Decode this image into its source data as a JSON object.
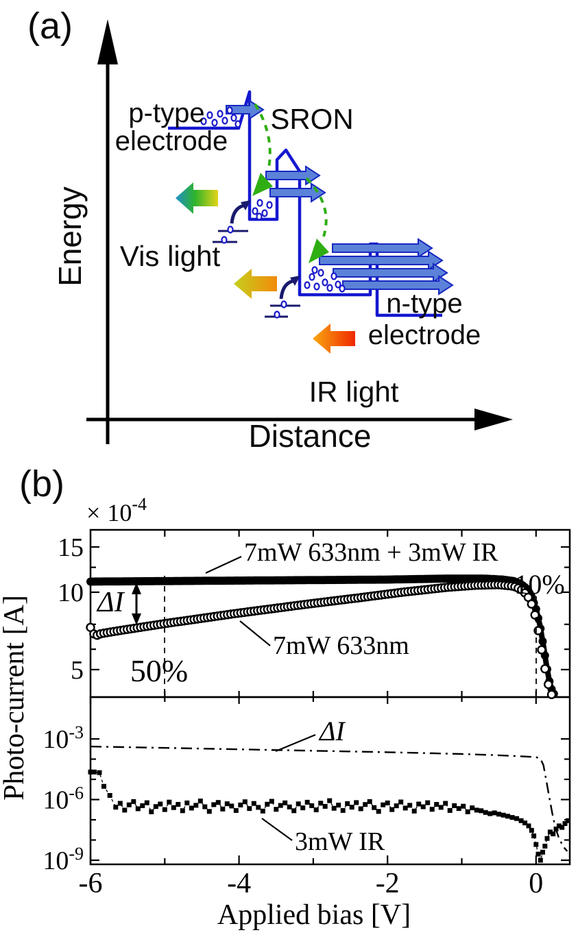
{
  "figure": {
    "panel_a": {
      "tag": "(a)",
      "p_electrode_line1": "p-type",
      "p_electrode_line2": "electrode",
      "sron": "SRON",
      "n_electrode_line1": "n-type",
      "n_electrode_line2": "electrode",
      "vis_light": "Vis light",
      "ir_light": "IR light",
      "energy_axis": "Energy",
      "distance_axis": "Distance",
      "colors": {
        "band_blue": "#1518cf",
        "vis_text_blue": "#2222dd",
        "ir_text_red": "#ff1405",
        "green_arrow": "#2fae13",
        "navy": "#1a1a6e",
        "fat_arrow_fill": "#5b82d8"
      }
    },
    "panel_b": {
      "tag": "(b)"
    }
  },
  "chart_data": [
    {
      "type": "scatter",
      "panel": "top",
      "x_range": [
        -6,
        0.46
      ],
      "y_scale": "log",
      "y_unit": "1e-4 A",
      "grid": false,
      "ylabel": "Photo-current [A]",
      "y_multiplier": {
        "sign": "×",
        "base": "10",
        "exp": "-4"
      },
      "y_ticks": [
        {
          "v": 15,
          "label": "15"
        },
        {
          "v": 10,
          "label": "10"
        },
        {
          "v": 5,
          "label": "5"
        }
      ],
      "y_minor": [
        12.5,
        7.5,
        6
      ],
      "x_minor_ticks": [
        -5,
        -4,
        -3,
        -2,
        -1,
        0
      ],
      "annotations": {
        "delta_label": "ΔI",
        "pct50": "50%",
        "pct10": "10%",
        "pct50_x": -5,
        "pct10_x": 0
      },
      "series": [
        {
          "name": "7mW 633nm + 3mW IR",
          "marker": "filled-circle",
          "marker_step": 0.03,
          "anchors": [
            [
              -6,
              11.0
            ],
            [
              -5,
              11.05
            ],
            [
              -4,
              11.1
            ],
            [
              -3,
              11.15
            ],
            [
              -2,
              11.2
            ],
            [
              -1.2,
              11.3
            ],
            [
              -0.7,
              11.3
            ],
            [
              -0.45,
              11.2
            ],
            [
              -0.3,
              11.05
            ],
            [
              -0.2,
              10.75
            ],
            [
              -0.12,
              10.3
            ],
            [
              -0.06,
              9.6
            ],
            [
              0,
              8.6
            ],
            [
              0.05,
              7.5
            ],
            [
              0.1,
              6.2
            ],
            [
              0.14,
              5.2
            ],
            [
              0.18,
              4.5
            ],
            [
              0.22,
              4.1
            ],
            [
              0.26,
              3.95
            ]
          ]
        },
        {
          "name": "7mW 633nm",
          "marker": "open-circle",
          "marker_step": 0.045,
          "anchors": [
            [
              -6,
              7.3
            ],
            [
              -5.94,
              6.75
            ],
            [
              -5.86,
              6.9
            ],
            [
              -5.6,
              7.1
            ],
            [
              -5,
              7.55
            ],
            [
              -4,
              8.3
            ],
            [
              -3,
              9.05
            ],
            [
              -2.4,
              9.5
            ],
            [
              -1.8,
              10.0
            ],
            [
              -1.2,
              10.45
            ],
            [
              -0.8,
              10.65
            ],
            [
              -0.5,
              10.7
            ],
            [
              -0.3,
              10.55
            ],
            [
              -0.2,
              10.25
            ],
            [
              -0.12,
              9.75
            ],
            [
              -0.06,
              9.0
            ],
            [
              0,
              7.9
            ],
            [
              0.05,
              6.6
            ],
            [
              0.1,
              5.4
            ],
            [
              0.14,
              4.7
            ],
            [
              0.18,
              4.2
            ],
            [
              0.21,
              4.0
            ]
          ]
        }
      ]
    },
    {
      "type": "scatter",
      "panel": "bottom",
      "x_range": [
        -6,
        0.46
      ],
      "y_scale": "log",
      "grid": false,
      "xlabel": "Applied bias [V]",
      "x_ticks": [
        {
          "v": -6,
          "label": "-6"
        },
        {
          "v": -4,
          "label": "-4"
        },
        {
          "v": -2,
          "label": "-2"
        },
        {
          "v": 0,
          "label": "0"
        }
      ],
      "x_minor": [
        -5,
        -3,
        -1
      ],
      "y_ticks": [
        {
          "v": 0.001,
          "base": "10",
          "exp": "-3"
        },
        {
          "v": 1e-06,
          "base": "10",
          "exp": "-6"
        },
        {
          "v": 1e-09,
          "base": "10",
          "exp": "-9"
        }
      ],
      "y_minor": [
        0.0001,
        1e-05,
        1e-07,
        1e-08
      ],
      "series": [
        {
          "name": "ΔI",
          "style": "dash-dot-line",
          "anchors": [
            [
              -6,
              0.00042
            ],
            [
              -5,
              0.00036
            ],
            [
              -4,
              0.000305
            ],
            [
              -3,
              0.00026
            ],
            [
              -2,
              0.00022
            ],
            [
              -1,
              0.00018
            ],
            [
              -0.5,
              0.000155
            ],
            [
              -0.2,
              0.000138
            ],
            [
              0,
              0.000125
            ],
            [
              0.06,
              0.000105
            ],
            [
              0.1,
              5e-05
            ],
            [
              0.14,
              8e-06
            ],
            [
              0.18,
              1.2e-06
            ],
            [
              0.22,
              2e-07
            ],
            [
              0.26,
              4e-08
            ],
            [
              0.31,
              1.2e-08
            ],
            [
              0.37,
              4.5e-09
            ],
            [
              0.42,
              2.8e-09
            ]
          ]
        },
        {
          "name": "3mW IR",
          "marker": "filled-square",
          "points_head": [
            [
              -6,
              2.3e-05
            ],
            [
              -5.95,
              2.3e-05
            ],
            [
              -5.88,
              2.15e-05
            ],
            [
              -5.82,
              4.5e-06
            ],
            [
              -5.74,
              1.6e-06
            ]
          ],
          "noise": {
            "x_start": -5.66,
            "x_step": 0.06,
            "scale": 1e-07,
            "values": [
              4.2,
              6.5,
              3.0,
              5.5,
              8.0,
              3.5,
              5.0,
              7.0,
              2.5,
              4.5,
              6.0,
              3.2,
              7.5,
              4.0,
              5.8,
              2.8,
              6.8,
              3.8,
              5.2,
              8.5,
              4.4,
              2.6,
              5.6,
              7.2,
              3.4,
              6.2,
              4.8,
              2.9,
              5.4,
              7.8,
              3.6,
              6.4,
              4.1,
              2.7,
              5.9,
              8.2,
              3.3,
              5.1,
              6.9,
              4.3,
              2.8,
              6.1,
              3.9,
              7.4,
              5.0,
              3.1,
              6.6,
              4.6,
              8.8,
              3.7,
              5.3,
              2.9,
              6.3,
              4.2,
              7.1,
              3.5,
              5.7,
              8.0,
              4.0,
              2.6,
              5.5,
              6.8,
              3.2,
              4.9,
              7.6,
              3.8,
              5.2,
              2.7,
              6.0,
              4.4,
              7.0,
              3.3,
              5.8,
              4.1,
              6.5,
              2.9,
              5.0,
              3.6,
              4.7,
              2.5,
              3.9,
              3.0,
              2.8,
              2.3,
              2.0
            ]
          },
          "points_tail": [
            [
              -0.56,
              2.2e-07
            ],
            [
              -0.5,
              1.9e-07
            ],
            [
              -0.44,
              1.7e-07
            ],
            [
              -0.38,
              1.5e-07
            ],
            [
              -0.32,
              1.3e-07
            ],
            [
              -0.26,
              1.15e-07
            ],
            [
              -0.2,
              9e-08
            ],
            [
              -0.15,
              7e-08
            ],
            [
              -0.1,
              5e-08
            ],
            [
              -0.06,
              3e-08
            ],
            [
              -0.03,
              1.6e-08
            ],
            [
              0,
              6e-09
            ],
            [
              0.03,
              2e-09
            ],
            [
              0.06,
              1e-09
            ],
            [
              0.09,
              2.5e-09
            ],
            [
              0.12,
              5e-09
            ],
            [
              0.15,
              1.2e-08
            ],
            [
              0.19,
              2.5e-08
            ],
            [
              0.23,
              2e-08
            ],
            [
              0.27,
              3.5e-08
            ],
            [
              0.31,
              5e-08
            ],
            [
              0.35,
              4.2e-08
            ],
            [
              0.39,
              6.5e-08
            ],
            [
              0.43,
              9e-08
            ]
          ]
        }
      ]
    }
  ]
}
